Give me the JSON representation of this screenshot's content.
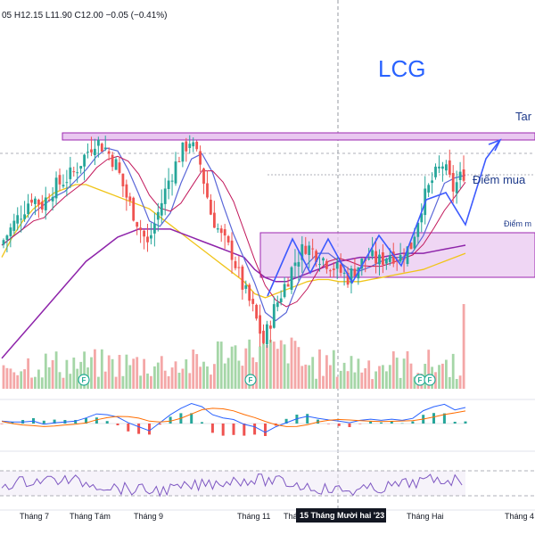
{
  "header": {
    "ohlc_text": "05  H12.15  L11.90  C12.00  −0.05 (−0.41%)"
  },
  "ticker": "LCG",
  "annotations": {
    "target": "Tar",
    "buy_point": "Điểm mua",
    "buy_point_2": "Điểm m"
  },
  "highlight_date": "15 Tháng Mười hai '23",
  "flag_letter": "F",
  "chart_data": {
    "type": "candlestick",
    "x_months": [
      "Tháng 7",
      "Tháng Tám",
      "Tháng 9",
      "Tháng 11",
      "Tháng",
      "Tháng Hai",
      "Tháng 4"
    ],
    "last_ohlc": {
      "high": 12.15,
      "low": 11.9,
      "close": 12.0,
      "change": -0.05,
      "change_pct": -0.41
    },
    "price_trend_close": [
      10.2,
      10.6,
      11.0,
      11.4,
      11.2,
      11.6,
      11.8,
      12.0,
      12.4,
      12.8,
      12.6,
      12.2,
      11.4,
      10.8,
      10.2,
      11.0,
      11.8,
      12.4,
      12.8,
      12.2,
      11.0,
      10.4,
      10.0,
      9.2,
      8.6,
      7.8,
      8.6,
      9.2,
      9.8,
      10.2,
      10.0,
      9.8,
      9.6,
      9.4,
      9.7,
      9.9,
      9.8,
      10.0,
      9.9,
      10.2,
      11.2,
      11.8,
      12.2,
      11.6,
      12.0
    ],
    "ma_purple": [
      7.4,
      7.7,
      8.0,
      8.3,
      8.6,
      8.9,
      9.2,
      9.5,
      9.8,
      10.0,
      10.2,
      10.4,
      10.5,
      10.6,
      10.6,
      10.6,
      10.6,
      10.5,
      10.4,
      10.3,
      10.2,
      10.1,
      10.0,
      9.9,
      9.6,
      9.4,
      9.3,
      9.3,
      9.4,
      9.5,
      9.6,
      9.7,
      9.8,
      9.85,
      9.9,
      9.9,
      9.9,
      9.95,
      10.0,
      10.0,
      10.0,
      10.05,
      10.1,
      10.15,
      10.2
    ],
    "ma_yellow": [
      9.9,
      10.4,
      10.8,
      11.1,
      11.3,
      11.5,
      11.6,
      11.7,
      11.7,
      11.6,
      11.5,
      11.4,
      11.3,
      11.2,
      11.1,
      10.9,
      10.7,
      10.5,
      10.3,
      10.1,
      9.9,
      9.7,
      9.5,
      9.3,
      9.0,
      8.9,
      9.0,
      9.1,
      9.2,
      9.3,
      9.35,
      9.35,
      9.3,
      9.3,
      9.3,
      9.35,
      9.4,
      9.45,
      9.5,
      9.55,
      9.6,
      9.7,
      9.8,
      9.9,
      10.0
    ]
  },
  "legend_flags_count": 4,
  "colors": {
    "up": "#26a69a",
    "down": "#ef5350",
    "ma_short_blue": "#5a67d8",
    "ma_long_purple": "#8e24aa",
    "ma_yellow": "#f0c419",
    "zone_fill": "#e9c8f0",
    "zone_stroke": "#9c27b0",
    "trend_line": "#3d5afe",
    "ticker": "#2962ff",
    "highlight_bg": "#131722"
  }
}
